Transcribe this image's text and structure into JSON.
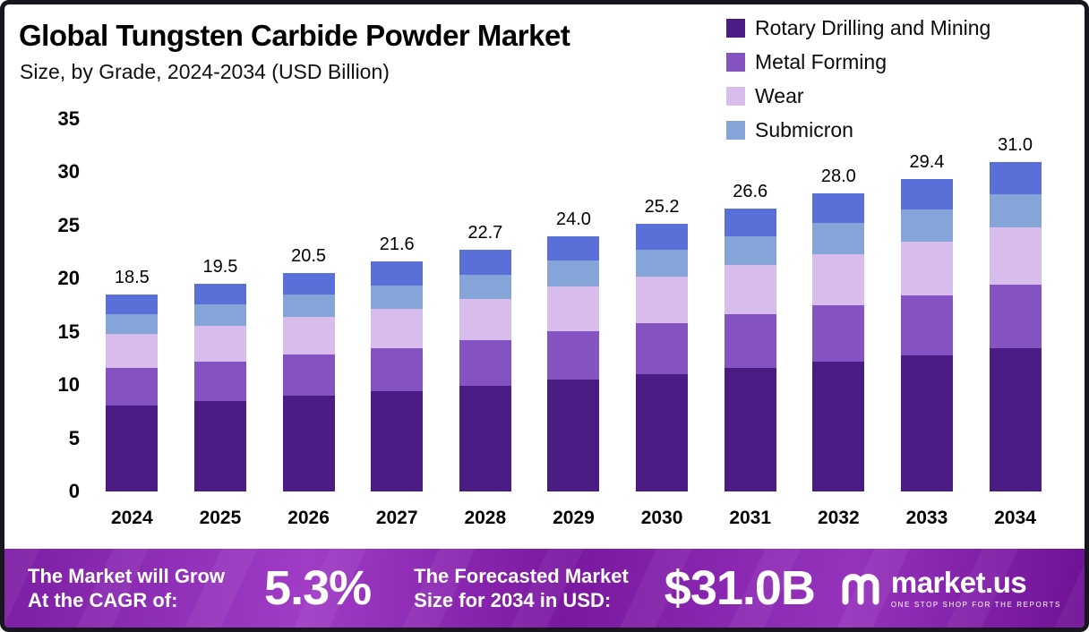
{
  "header": {
    "title": "Global Tungsten Carbide Powder Market",
    "subtitle": "Size, by Grade, 2024-2034 (USD Billion)"
  },
  "legend": [
    {
      "label": "Rotary Drilling and Mining",
      "color": "#4b1d84"
    },
    {
      "label": "Metal Forming",
      "color": "#8553c1"
    },
    {
      "label": "Wear",
      "color": "#d7bcec"
    },
    {
      "label": "Submicron",
      "color": "#85a5d8"
    }
  ],
  "chart_data": {
    "type": "bar",
    "stacked": true,
    "title": "Global Tungsten Carbide Powder Market Size, by Grade, 2024-2034 (USD Billion)",
    "categories": [
      "2024",
      "2025",
      "2026",
      "2027",
      "2028",
      "2029",
      "2030",
      "2031",
      "2032",
      "2033",
      "2034"
    ],
    "totals": [
      18.5,
      19.5,
      20.5,
      21.6,
      22.7,
      24.0,
      25.2,
      26.6,
      28.0,
      29.4,
      31.0
    ],
    "series": [
      {
        "key": "rotary-drilling-and-mining",
        "name": "Rotary Drilling and Mining",
        "color": "#4b1d84",
        "values": [
          8.1,
          8.5,
          9.0,
          9.4,
          9.9,
          10.5,
          11.0,
          11.6,
          12.2,
          12.8,
          13.5
        ]
      },
      {
        "key": "metal-forming",
        "name": "Metal Forming",
        "color": "#8553c1",
        "values": [
          3.5,
          3.7,
          3.9,
          4.1,
          4.3,
          4.6,
          4.8,
          5.1,
          5.3,
          5.6,
          5.9
        ]
      },
      {
        "key": "wear",
        "name": "Wear",
        "color": "#d7bcec",
        "values": [
          3.2,
          3.4,
          3.5,
          3.7,
          3.9,
          4.2,
          4.4,
          4.6,
          4.8,
          5.1,
          5.4
        ]
      },
      {
        "key": "submicron",
        "name": "Submicron",
        "color": "#85a5d8",
        "values": [
          1.9,
          2.0,
          2.1,
          2.2,
          2.3,
          2.4,
          2.5,
          2.7,
          2.9,
          3.0,
          3.1
        ]
      },
      {
        "key": "top-unlabeled",
        "name": "",
        "color": "#5b6fd9",
        "values": [
          1.8,
          1.9,
          2.0,
          2.2,
          2.3,
          2.3,
          2.5,
          2.6,
          2.8,
          2.9,
          3.1
        ]
      }
    ],
    "y_ticks": [
      0,
      5,
      10,
      15,
      20,
      25,
      30,
      35
    ],
    "ylim": [
      0,
      35
    ],
    "xlabel": "",
    "ylabel": "",
    "grid": false,
    "legend_position": "top-right",
    "value_label_format": "one-decimal"
  },
  "footer": {
    "cagr_label_line1": "The Market will Grow",
    "cagr_label_line2": "At the CAGR of:",
    "cagr_value": "5.3%",
    "forecast_label_line1": "The Forecasted Market",
    "forecast_label_line2": "Size for 2034 in USD:",
    "forecast_value": "$31.0B",
    "brand_name": "market.us",
    "brand_tagline": "ONE STOP SHOP FOR THE REPORTS"
  }
}
